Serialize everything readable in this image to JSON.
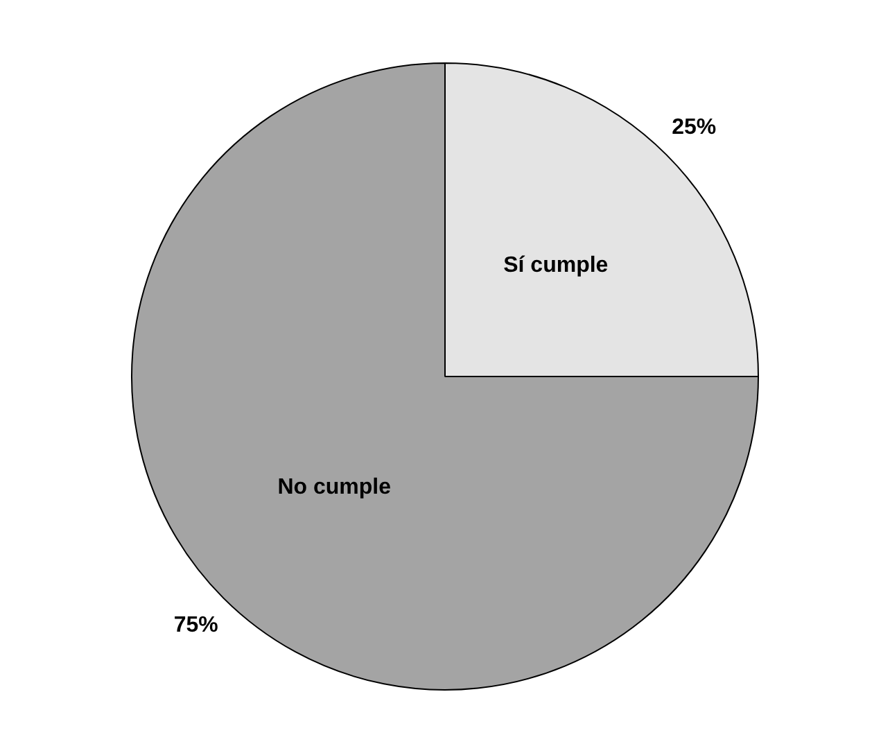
{
  "chart_data": {
    "type": "pie",
    "categories": [
      "Sí cumple",
      "No cumple"
    ],
    "values": [
      25,
      75
    ],
    "colors": [
      "#e4e4e4",
      "#a4a4a4"
    ],
    "value_labels": [
      "25%",
      "75%"
    ],
    "legend": false
  }
}
